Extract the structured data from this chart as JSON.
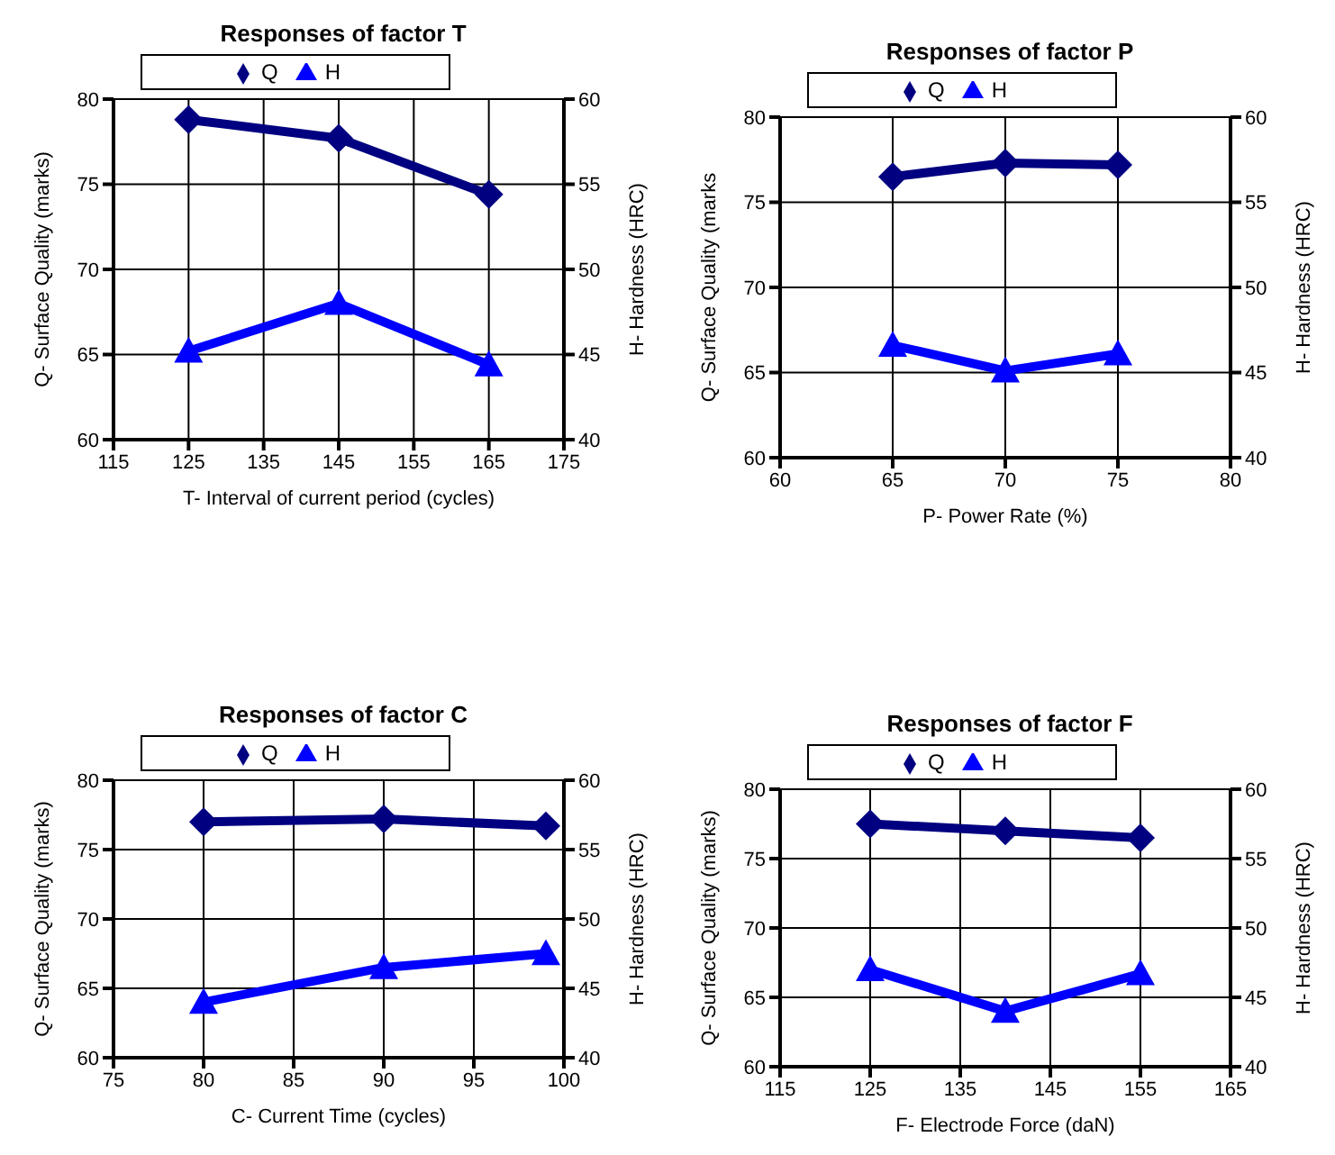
{
  "chart_data": [
    {
      "type": "line",
      "title": "Responses of factor T",
      "xlabel": "T- Interval of current period (cycles)",
      "ylabel": "Q- Surface Quality (marks)",
      "y2label": "H- Hardness (HRC)",
      "x": [
        125,
        145,
        165
      ],
      "xlim": [
        115,
        175
      ],
      "xticks": [
        115,
        125,
        135,
        145,
        155,
        165,
        175
      ],
      "ylim": [
        60,
        80
      ],
      "yticks": [
        60,
        65,
        70,
        75,
        80
      ],
      "y2lim": [
        40,
        60
      ],
      "y2ticks": [
        40,
        45,
        50,
        55,
        60
      ],
      "grid": true,
      "legend": "top",
      "series": [
        {
          "name": "Q",
          "color": "#000080",
          "marker": "diamond",
          "values": [
            78.8,
            77.7,
            74.4
          ]
        },
        {
          "name": "H",
          "color": "#0000ff",
          "marker": "triangle",
          "axis": "y2",
          "values": [
            45.2,
            48.0,
            44.4
          ]
        }
      ]
    },
    {
      "type": "line",
      "title": "Responses of factor P",
      "xlabel": "P- Power Rate (%)",
      "ylabel": "Q- Surface Quality (marks",
      "y2label": "H- Hardness (HRC)",
      "x": [
        65,
        70,
        75
      ],
      "xlim": [
        60,
        80
      ],
      "xticks": [
        60,
        65,
        70,
        75,
        80
      ],
      "ylim": [
        60,
        80
      ],
      "yticks": [
        60,
        65,
        70,
        75,
        80
      ],
      "y2lim": [
        40,
        60
      ],
      "y2ticks": [
        40,
        45,
        50,
        55,
        60
      ],
      "grid": true,
      "legend": "top",
      "series": [
        {
          "name": "Q",
          "color": "#000080",
          "marker": "diamond",
          "values": [
            76.5,
            77.3,
            77.2
          ]
        },
        {
          "name": "H",
          "color": "#0000ff",
          "marker": "triangle",
          "axis": "y2",
          "values": [
            46.6,
            45.1,
            46.1
          ]
        }
      ]
    },
    {
      "type": "line",
      "title": "Responses of factor C",
      "xlabel": "C- Current Time (cycles)",
      "ylabel": "Q- Surface Quality (marks)",
      "y2label": "H- Hardness (HRC)",
      "x": [
        80,
        90,
        99
      ],
      "xlim": [
        75,
        100
      ],
      "xticks": [
        75,
        80,
        85,
        90,
        95,
        100
      ],
      "ylim": [
        60,
        80
      ],
      "yticks": [
        60,
        65,
        70,
        75,
        80
      ],
      "y2lim": [
        40,
        60
      ],
      "y2ticks": [
        40,
        45,
        50,
        55,
        60
      ],
      "grid": true,
      "legend": "top",
      "series": [
        {
          "name": "Q",
          "color": "#000080",
          "marker": "diamond",
          "values": [
            77.0,
            77.2,
            76.7
          ]
        },
        {
          "name": "H",
          "color": "#0000ff",
          "marker": "triangle",
          "axis": "y2",
          "values": [
            44.0,
            46.5,
            47.5
          ]
        }
      ]
    },
    {
      "type": "line",
      "title": "Responses of factor F",
      "xlabel": "F- Electrode Force (daN)",
      "ylabel": "Q- Surface Quality (marks)",
      "y2label": "H- Hardness (HRC)",
      "x": [
        125,
        140,
        155
      ],
      "xlim": [
        115,
        165
      ],
      "xticks": [
        115,
        125,
        135,
        145,
        155,
        165
      ],
      "ylim": [
        60,
        80
      ],
      "yticks": [
        60,
        65,
        70,
        75,
        80
      ],
      "y2lim": [
        40,
        60
      ],
      "y2ticks": [
        40,
        45,
        50,
        55,
        60
      ],
      "grid": true,
      "legend": "top",
      "series": [
        {
          "name": "Q",
          "color": "#000080",
          "marker": "diamond",
          "values": [
            77.5,
            77.0,
            76.5
          ]
        },
        {
          "name": "H",
          "color": "#0000ff",
          "marker": "triangle",
          "axis": "y2",
          "values": [
            47.0,
            44.0,
            46.7
          ]
        }
      ]
    }
  ]
}
